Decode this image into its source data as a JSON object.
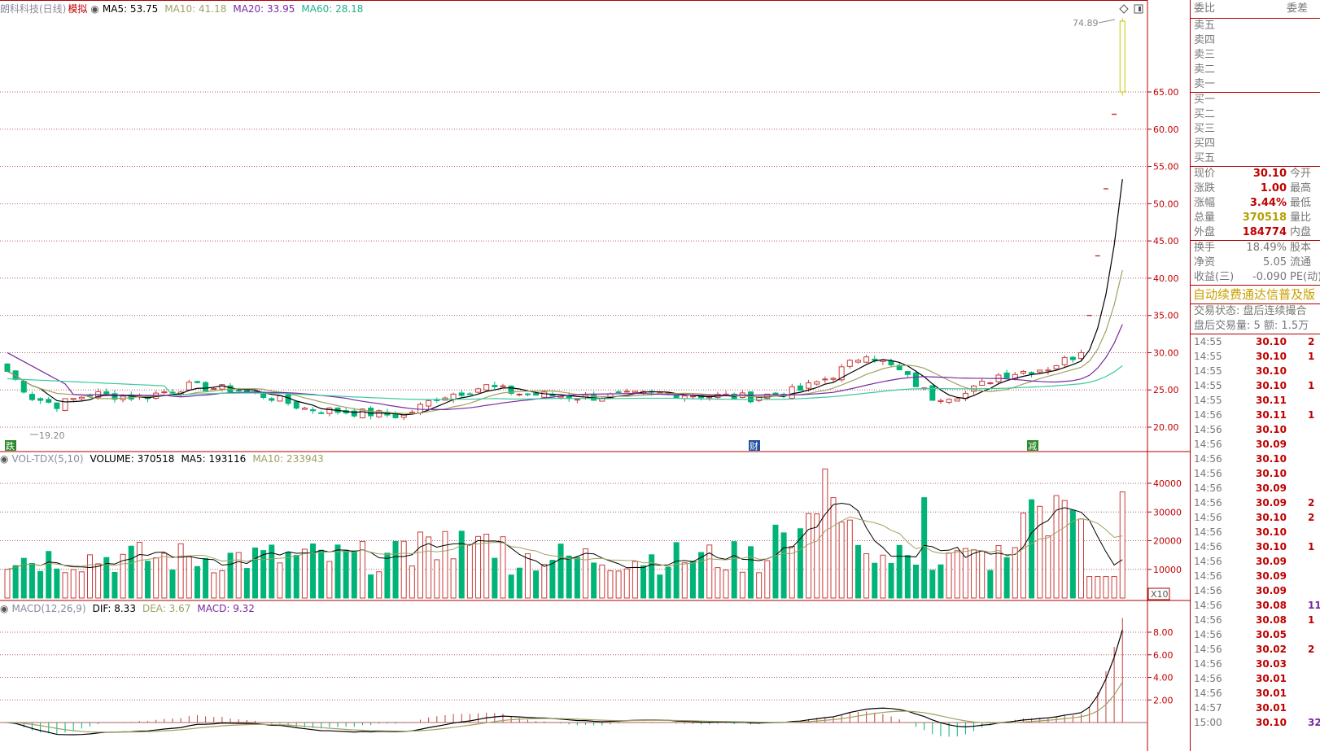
{
  "header": {
    "stock_name": "朗科科技(日线)",
    "mode": "模拟",
    "ma5": "MA5: 53.75",
    "ma10": "MA10: 41.18",
    "ma20": "MA20: 33.95",
    "ma60": "MA60: 28.18"
  },
  "colors": {
    "up": "#c83c3c",
    "down": "#00b478",
    "ma5": "#000000",
    "ma10": "#a0a064",
    "ma20": "#7828a0",
    "ma60": "#3cc8a0",
    "accent": "#c00000"
  },
  "price_panel": {
    "ylabels": [
      "65.00",
      "60.00",
      "55.00",
      "50.00",
      "45.00",
      "40.00",
      "35.00",
      "30.00",
      "25.00",
      "20.00"
    ],
    "high_label": "74.89",
    "low_label": "19.20",
    "markers": [
      "跌",
      "财",
      "减"
    ]
  },
  "volume_panel": {
    "indicator": "VOL-TDX(5,10)",
    "volume": "VOLUME: 370518",
    "ma5": "MA5: 193116",
    "ma10": "MA10: 233943",
    "ylabels": [
      "40000",
      "30000",
      "20000",
      "10000"
    ],
    "unit": "X10"
  },
  "macd_panel": {
    "indicator": "MACD(12,26,9)",
    "dif": "DIF: 8.33",
    "dea": "DEA: 3.67",
    "macd": "MACD: 9.32",
    "ylabels": [
      "8.00",
      "6.00",
      "4.00",
      "2.00"
    ]
  },
  "side": {
    "wei_bi": "委比",
    "wei_cha": "委差",
    "asks": [
      "卖五",
      "卖四",
      "卖三",
      "卖二",
      "卖一"
    ],
    "bids": [
      "买一",
      "买二",
      "买三",
      "买四",
      "买五"
    ],
    "quote": [
      {
        "label": "现价",
        "value": "30.10",
        "label2": "今开",
        "color": "#c00000"
      },
      {
        "label": "涨跌",
        "value": "1.00",
        "label2": "最高",
        "color": "#c00000"
      },
      {
        "label": "涨幅",
        "value": "3.44%",
        "label2": "最低",
        "color": "#c00000"
      },
      {
        "label": "总量",
        "value": "370518",
        "label2": "量比",
        "color": "#b4a000"
      },
      {
        "label": "外盘",
        "value": "184774",
        "label2": "内盘",
        "color": "#c00000"
      }
    ],
    "stats": [
      {
        "label": "换手",
        "value": "18.49%",
        "label2": "股本"
      },
      {
        "label": "净资",
        "value": "5.05",
        "label2": "流通"
      },
      {
        "label": "收益(三)",
        "value": "-0.090",
        "label2": "PE(动)"
      }
    ],
    "banner": "自动续费通达信普及版",
    "status": "交易状态: 盘后连续撮合",
    "after_volume": "盘后交易量: 5  额: 1.5万",
    "ticks": [
      {
        "t": "14:55",
        "p": "30.10",
        "v": "2"
      },
      {
        "t": "14:55",
        "p": "30.10",
        "v": "1"
      },
      {
        "t": "14:55",
        "p": "30.10",
        "v": ""
      },
      {
        "t": "14:55",
        "p": "30.10",
        "v": "1"
      },
      {
        "t": "14:55",
        "p": "30.11",
        "v": ""
      },
      {
        "t": "14:56",
        "p": "30.11",
        "v": "1"
      },
      {
        "t": "14:56",
        "p": "30.10",
        "v": ""
      },
      {
        "t": "14:56",
        "p": "30.09",
        "v": ""
      },
      {
        "t": "14:56",
        "p": "30.10",
        "v": ""
      },
      {
        "t": "14:56",
        "p": "30.10",
        "v": ""
      },
      {
        "t": "14:56",
        "p": "30.09",
        "v": ""
      },
      {
        "t": "14:56",
        "p": "30.09",
        "v": "2"
      },
      {
        "t": "14:56",
        "p": "30.10",
        "v": "2"
      },
      {
        "t": "14:56",
        "p": "30.10",
        "v": ""
      },
      {
        "t": "14:56",
        "p": "30.10",
        "v": "1"
      },
      {
        "t": "14:56",
        "p": "30.09",
        "v": ""
      },
      {
        "t": "14:56",
        "p": "30.09",
        "v": ""
      },
      {
        "t": "14:56",
        "p": "30.09",
        "v": ""
      },
      {
        "t": "14:56",
        "p": "30.08",
        "v": "11"
      },
      {
        "t": "14:56",
        "p": "30.08",
        "v": "1"
      },
      {
        "t": "14:56",
        "p": "30.05",
        "v": ""
      },
      {
        "t": "14:56",
        "p": "30.02",
        "v": "2"
      },
      {
        "t": "14:56",
        "p": "30.03",
        "v": ""
      },
      {
        "t": "14:56",
        "p": "30.01",
        "v": ""
      },
      {
        "t": "14:56",
        "p": "30.01",
        "v": ""
      },
      {
        "t": "14:57",
        "p": "30.01",
        "v": ""
      },
      {
        "t": "15:00",
        "p": "30.10",
        "v": "32"
      }
    ]
  }
}
